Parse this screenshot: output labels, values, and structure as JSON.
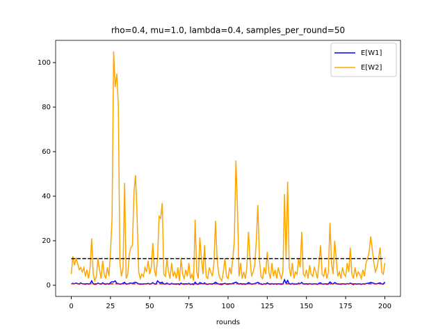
{
  "chart_data": {
    "type": "line",
    "title": "rho=0.4, mu=1.0, lambda=0.4, samples_per_round=50",
    "x_label": "rounds",
    "x": [
      0,
      1,
      2,
      3,
      4,
      5,
      6,
      7,
      8,
      9,
      10,
      11,
      12,
      13,
      14,
      15,
      16,
      17,
      18,
      19,
      20,
      21,
      22,
      23,
      24,
      25,
      26,
      27,
      28,
      29,
      30,
      31,
      32,
      33,
      34,
      35,
      36,
      37,
      38,
      39,
      40,
      41,
      42,
      43,
      44,
      45,
      46,
      47,
      48,
      49,
      50,
      51,
      52,
      53,
      54,
      55,
      56,
      57,
      58,
      59,
      60,
      61,
      62,
      63,
      64,
      65,
      66,
      67,
      68,
      69,
      70,
      71,
      72,
      73,
      74,
      75,
      76,
      77,
      78,
      79,
      80,
      81,
      82,
      83,
      84,
      85,
      86,
      87,
      88,
      89,
      90,
      91,
      92,
      93,
      94,
      95,
      96,
      97,
      98,
      99,
      100,
      101,
      102,
      103,
      104,
      105,
      106,
      107,
      108,
      109,
      110,
      111,
      112,
      113,
      114,
      115,
      116,
      117,
      118,
      119,
      120,
      121,
      122,
      123,
      124,
      125,
      126,
      127,
      128,
      129,
      130,
      131,
      132,
      133,
      134,
      135,
      136,
      137,
      138,
      139,
      140,
      141,
      142,
      143,
      144,
      145,
      146,
      147,
      148,
      149,
      150,
      151,
      152,
      153,
      154,
      155,
      156,
      157,
      158,
      159,
      160,
      161,
      162,
      163,
      164,
      165,
      166,
      167,
      168,
      169,
      170,
      171,
      172,
      173,
      174,
      175,
      176,
      177,
      178,
      179,
      180,
      181,
      182,
      183,
      184,
      185,
      186,
      187,
      188,
      189,
      190,
      191,
      192,
      193,
      194,
      195,
      196,
      197,
      198,
      199,
      200
    ],
    "series": [
      {
        "name": "E[W1]",
        "color": "#0000ff",
        "values": [
          0.6,
          0.9,
          0.7,
          1.0,
          0.8,
          0.5,
          1.1,
          0.7,
          0.6,
          0.4,
          0.8,
          0.5,
          0.7,
          2.0,
          0.6,
          0.4,
          0.5,
          1.0,
          0.7,
          0.5,
          1.1,
          0.6,
          0.4,
          0.8,
          0.5,
          1.2,
          1.6,
          1.5,
          2.0,
          0.9,
          0.8,
          0.5,
          0.6,
          1.0,
          1.3,
          0.5,
          0.6,
          0.9,
          1.0,
          0.8,
          1.2,
          1.4,
          1.0,
          0.6,
          0.4,
          0.6,
          0.5,
          0.7,
          0.6,
          0.9,
          0.5,
          0.7,
          1.2,
          0.6,
          0.5,
          2.0,
          1.3,
          1.1,
          1.4,
          0.6,
          0.5,
          1.0,
          0.6,
          0.4,
          0.9,
          0.5,
          0.6,
          0.4,
          0.7,
          0.3,
          1.0,
          0.6,
          0.4,
          0.7,
          0.5,
          0.9,
          0.4,
          0.6,
          0.3,
          1.4,
          0.6,
          0.4,
          1.2,
          0.9,
          0.6,
          1.1,
          0.5,
          0.4,
          0.7,
          0.6,
          0.5,
          0.9,
          1.4,
          0.9,
          0.6,
          0.4,
          0.3,
          0.6,
          0.9,
          0.5,
          0.4,
          0.7,
          0.6,
          0.9,
          1.1,
          1.4,
          1.0,
          0.5,
          0.8,
          0.4,
          0.6,
          0.4,
          0.7,
          1.2,
          0.9,
          0.5,
          0.6,
          0.8,
          1.0,
          1.3,
          0.9,
          0.5,
          0.4,
          0.7,
          0.5,
          1.1,
          0.6,
          0.4,
          0.8,
          0.5,
          0.7,
          0.4,
          0.7,
          0.6,
          0.4,
          0.6,
          2.5,
          0.9,
          2.2,
          0.7,
          0.5,
          0.9,
          0.4,
          0.6,
          0.5,
          1.0,
          0.7,
          1.3,
          0.6,
          0.5,
          0.7,
          0.4,
          0.8,
          0.6,
          0.5,
          0.7,
          0.6,
          0.4,
          0.9,
          1.1,
          0.6,
          0.5,
          0.7,
          0.4,
          0.6,
          1.5,
          0.9,
          0.6,
          1.2,
          0.9,
          0.5,
          0.6,
          0.4,
          0.7,
          0.6,
          0.5,
          0.8,
          0.6,
          1.0,
          0.6,
          0.3,
          0.7,
          0.5,
          0.6,
          0.6,
          0.4,
          0.7,
          0.5,
          0.8,
          0.9,
          1.0,
          1.3,
          1.1,
          0.9,
          0.6,
          0.7,
          0.9,
          1.1,
          0.6,
          0.5,
          1.5
        ]
      },
      {
        "name": "E[W2]",
        "color": "#ffa500",
        "values": [
          5,
          13,
          9,
          12,
          10,
          7,
          8,
          6,
          8,
          4,
          7,
          3,
          8,
          21,
          5,
          2,
          4,
          12,
          7,
          3,
          11,
          5,
          3,
          8,
          4,
          15,
          30,
          105,
          89,
          95,
          81,
          10,
          4,
          8,
          46,
          3,
          5,
          14,
          17,
          18,
          42,
          49.5,
          30,
          6,
          3,
          5,
          4,
          8,
          6,
          11,
          5,
          8,
          19,
          7,
          4,
          12,
          31,
          30,
          37,
          5,
          4,
          12,
          6,
          3,
          10,
          4,
          6,
          3,
          8,
          2,
          12,
          5,
          3,
          7,
          4,
          10,
          3,
          5,
          2,
          29.5,
          6,
          3,
          21.5,
          12,
          5,
          18,
          4,
          3,
          8,
          6,
          4,
          10,
          29,
          12,
          5,
          3,
          2,
          6,
          12,
          4,
          3,
          8,
          5,
          12,
          20,
          56,
          35,
          4,
          10,
          3,
          6,
          3,
          8,
          24,
          12,
          4,
          6,
          9,
          20,
          36,
          12,
          4,
          3,
          8,
          5,
          15,
          6,
          3,
          10,
          4,
          7,
          3,
          8,
          5,
          3,
          6,
          41,
          12,
          46.5,
          8,
          4,
          10,
          3,
          6,
          5,
          12,
          8,
          24,
          5,
          4,
          7,
          3,
          9,
          5,
          4,
          8,
          6,
          3,
          10,
          18,
          5,
          4,
          8,
          3,
          6,
          28,
          10,
          5,
          20,
          12,
          4,
          6,
          3,
          8,
          5,
          4,
          10,
          6,
          17,
          5,
          3,
          8,
          4,
          6,
          5,
          3,
          7,
          4,
          10,
          12,
          15,
          22,
          16,
          10,
          6,
          8,
          12,
          17,
          6,
          5,
          10
        ]
      }
    ],
    "hlines": [
      {
        "value": 12,
        "color": "#000000"
      },
      {
        "value": 0.67,
        "color": "#ff0000"
      }
    ],
    "xlim": [
      -10,
      210
    ],
    "ylim": [
      -5,
      110
    ],
    "xticks": [
      0,
      25,
      50,
      75,
      100,
      125,
      150,
      175,
      200
    ],
    "yticks": [
      0,
      20,
      40,
      60,
      80,
      100
    ],
    "legend": "upper right"
  }
}
